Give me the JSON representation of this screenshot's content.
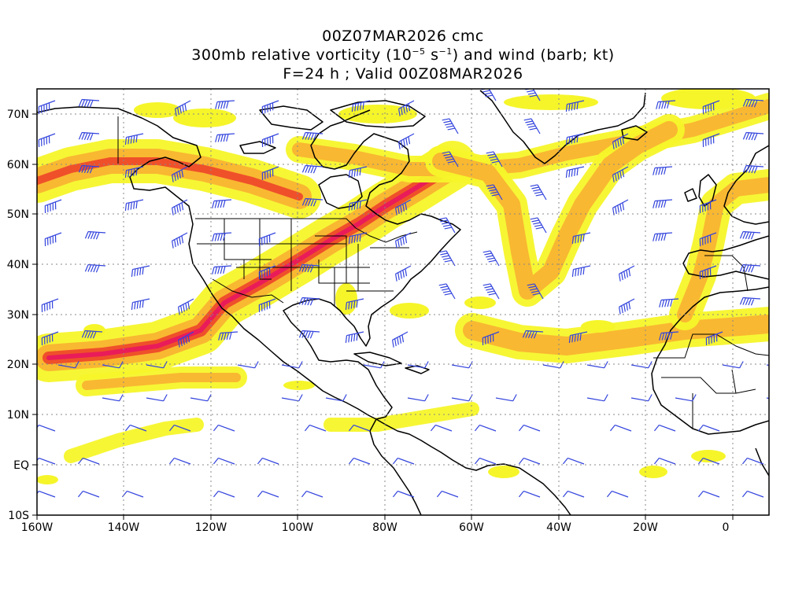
{
  "header": {
    "run_label": "00Z07MAR2026 cmc",
    "field_text_a": "300mb relative vorticity (10",
    "field_exp_a": "−5",
    "field_text_b": " s",
    "field_exp_b": "−1",
    "field_text_c": ") and wind (barb; kt)",
    "valid_label": "F=24 h ; Valid 00Z08MAR2026"
  },
  "map": {
    "projection": "cylindrical equidistant",
    "lon_range": [
      -160,
      10
    ],
    "lat_range": [
      -10,
      75
    ],
    "lon_ticks": [
      "160W",
      "140W",
      "120W",
      "100W",
      "80W",
      "60W",
      "40W",
      "20W",
      "0"
    ],
    "lat_ticks": [
      "70N",
      "60N",
      "50N",
      "40N",
      "30N",
      "20N",
      "10N",
      "EQ",
      "10S"
    ],
    "grid": "dotted",
    "colors": {
      "vorticity_low": "#f5f52a",
      "vorticity_mid": "#f9b431",
      "vorticity_high": "#ee4a2a",
      "vorticity_max": "#e8195c",
      "wind_barb": "#3344dd",
      "coastline": "#000000"
    }
  },
  "jet_streaks": [
    {
      "name": "subtropical-pacific-to-great-lakes",
      "peak": "max"
    },
    {
      "name": "north-pacific-alaska"
    },
    {
      "name": "greenland-canada"
    },
    {
      "name": "north-atlantic-arc"
    },
    {
      "name": "central-atlantic-subtropical"
    },
    {
      "name": "iberia-northwest-africa"
    }
  ]
}
